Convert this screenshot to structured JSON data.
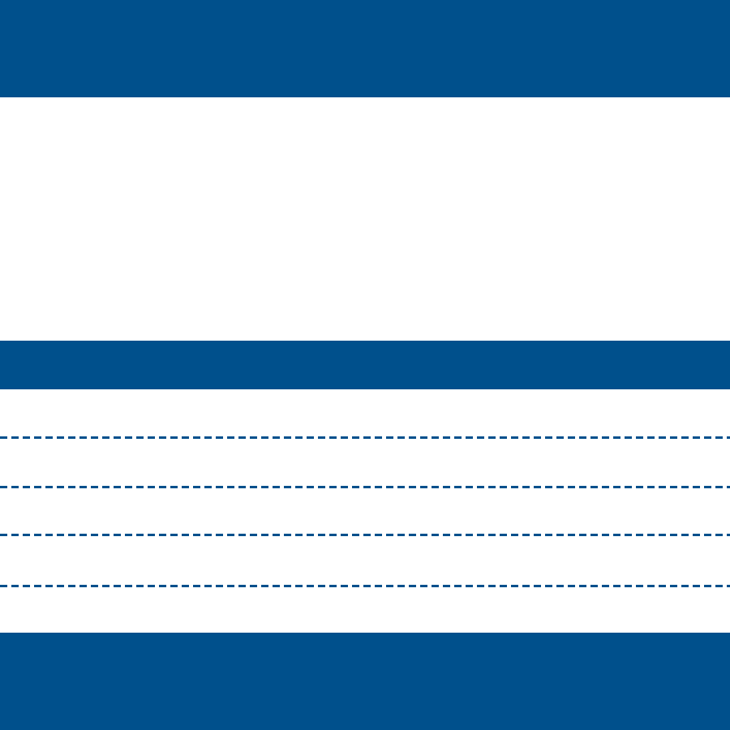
{
  "colors": {
    "accent": "#00508c",
    "background": "#ffffff"
  },
  "header": {},
  "section_bar": {},
  "lines": [
    {
      "style": "dashed"
    },
    {
      "style": "dashed"
    },
    {
      "style": "dashed"
    },
    {
      "style": "dashed"
    }
  ],
  "footer": {}
}
